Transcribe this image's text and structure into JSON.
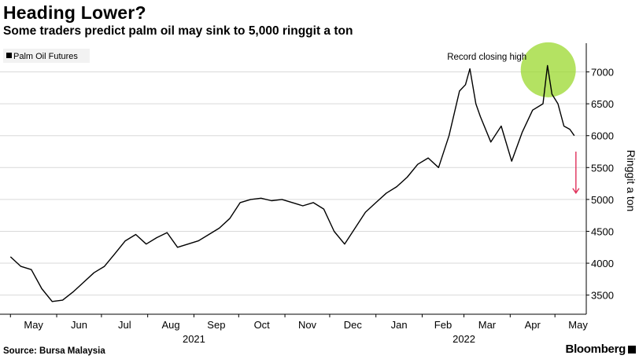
{
  "chart_data": {
    "type": "line",
    "title": "Heading Lower?",
    "subtitle": "Some traders predict palm oil may sink to 5,000 ringgit a ton",
    "ylabel": "Ringgit a ton",
    "ylim": [
      3200,
      7450
    ],
    "yticks": [
      3500,
      4000,
      4500,
      5000,
      5500,
      6000,
      6500,
      7000
    ],
    "ytick_labels": [
      "3500",
      "4000",
      "4500",
      "5000",
      "5500",
      "6000",
      "6500",
      "7000"
    ],
    "grid": true,
    "legend_position": "top-left",
    "months": [
      {
        "label": "May",
        "year": ""
      },
      {
        "label": "Jun",
        "year": ""
      },
      {
        "label": "Jul",
        "year": ""
      },
      {
        "label": "Aug",
        "year": ""
      },
      {
        "label": "Sep",
        "year": "2021"
      },
      {
        "label": "Oct",
        "year": ""
      },
      {
        "label": "Nov",
        "year": ""
      },
      {
        "label": "Dec",
        "year": ""
      },
      {
        "label": "Jan",
        "year": ""
      },
      {
        "label": "Feb",
        "year": ""
      },
      {
        "label": "Mar",
        "year": "2022"
      },
      {
        "label": "Apr",
        "year": ""
      },
      {
        "label": "May",
        "year": ""
      }
    ],
    "x_dates": [
      "2021-05-01",
      "2021-05-08",
      "2021-05-15",
      "2021-05-22",
      "2021-05-29",
      "2021-06-05",
      "2021-06-12",
      "2021-06-19",
      "2021-06-26",
      "2021-07-03",
      "2021-07-10",
      "2021-07-17",
      "2021-07-24",
      "2021-07-31",
      "2021-08-07",
      "2021-08-14",
      "2021-08-21",
      "2021-08-28",
      "2021-09-04",
      "2021-09-11",
      "2021-09-18",
      "2021-09-25",
      "2021-10-02",
      "2021-10-09",
      "2021-10-16",
      "2021-10-23",
      "2021-10-30",
      "2021-11-06",
      "2021-11-13",
      "2021-11-20",
      "2021-11-27",
      "2021-12-04",
      "2021-12-11",
      "2021-12-18",
      "2021-12-25",
      "2022-01-01",
      "2022-01-08",
      "2022-01-15",
      "2022-01-22",
      "2022-01-29",
      "2022-02-05",
      "2022-02-12",
      "2022-02-19",
      "2022-02-26",
      "2022-03-02",
      "2022-03-05",
      "2022-03-09",
      "2022-03-12",
      "2022-03-19",
      "2022-03-26",
      "2022-04-02",
      "2022-04-09",
      "2022-04-16",
      "2022-04-23",
      "2022-04-26",
      "2022-04-29",
      "2022-05-03",
      "2022-05-07",
      "2022-05-11",
      "2022-05-14"
    ],
    "series": [
      {
        "name": "Palm Oil Futures",
        "color": "#000000",
        "values": [
          4100,
          3950,
          3900,
          3600,
          3400,
          3420,
          3550,
          3700,
          3850,
          3950,
          4150,
          4350,
          4450,
          4300,
          4400,
          4480,
          4250,
          4300,
          4350,
          4450,
          4550,
          4700,
          4950,
          5000,
          5020,
          4980,
          5000,
          4950,
          4900,
          4950,
          4850,
          4500,
          4300,
          4550,
          4800,
          4950,
          5100,
          5200,
          5350,
          5550,
          5650,
          5500,
          6000,
          6700,
          6800,
          7050,
          6500,
          6300,
          5900,
          6150,
          5600,
          6050,
          6400,
          6500,
          7100,
          6650,
          6500,
          6150,
          6100,
          6000
        ]
      }
    ],
    "annotations": [
      {
        "text": "Record closing high",
        "x": "2022-04-26",
        "y": 7070,
        "color": "#9bd82e"
      },
      {
        "text": "",
        "x": "2022-05-14",
        "y": 5750,
        "y_end": 5100,
        "color": "#e0305a"
      }
    ]
  },
  "source": "Source: Bursa Malaysia",
  "brand": "Bloomberg"
}
